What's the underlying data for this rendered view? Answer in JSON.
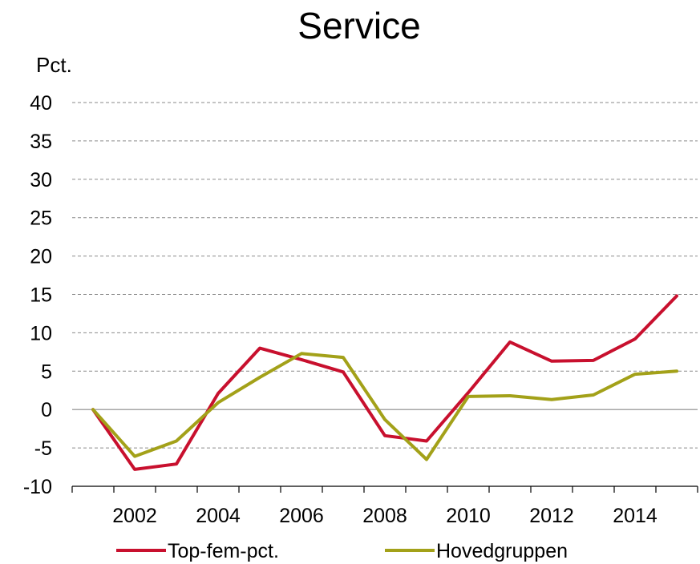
{
  "chart_data": {
    "type": "line",
    "title": "Service",
    "ylabel": "Pct.",
    "xlabel": "",
    "ylim": [
      -10,
      40
    ],
    "yticks": [
      -10,
      -5,
      0,
      5,
      10,
      15,
      20,
      25,
      30,
      35,
      40
    ],
    "x": [
      2001,
      2002,
      2003,
      2004,
      2005,
      2006,
      2007,
      2008,
      2009,
      2010,
      2011,
      2012,
      2013,
      2014,
      2015
    ],
    "xtick_labels": [
      "2002",
      "2004",
      "2006",
      "2008",
      "2010",
      "2012",
      "2014"
    ],
    "grid": "horizontal dashed",
    "legend": "bottom",
    "series": [
      {
        "name": "Top-fem-pct.",
        "color": "#c8102e",
        "values": [
          0,
          -7.8,
          -7.1,
          2.1,
          8.0,
          6.5,
          4.9,
          -3.4,
          -4.1,
          2.2,
          8.8,
          6.3,
          6.4,
          9.2,
          14.8
        ]
      },
      {
        "name": "Hovedgruppen",
        "color": "#a3a119",
        "values": [
          0,
          -6.1,
          -4.1,
          0.9,
          4.2,
          7.3,
          6.8,
          -1.3,
          -6.5,
          1.7,
          1.8,
          1.3,
          1.9,
          4.6,
          5.0
        ]
      }
    ]
  }
}
